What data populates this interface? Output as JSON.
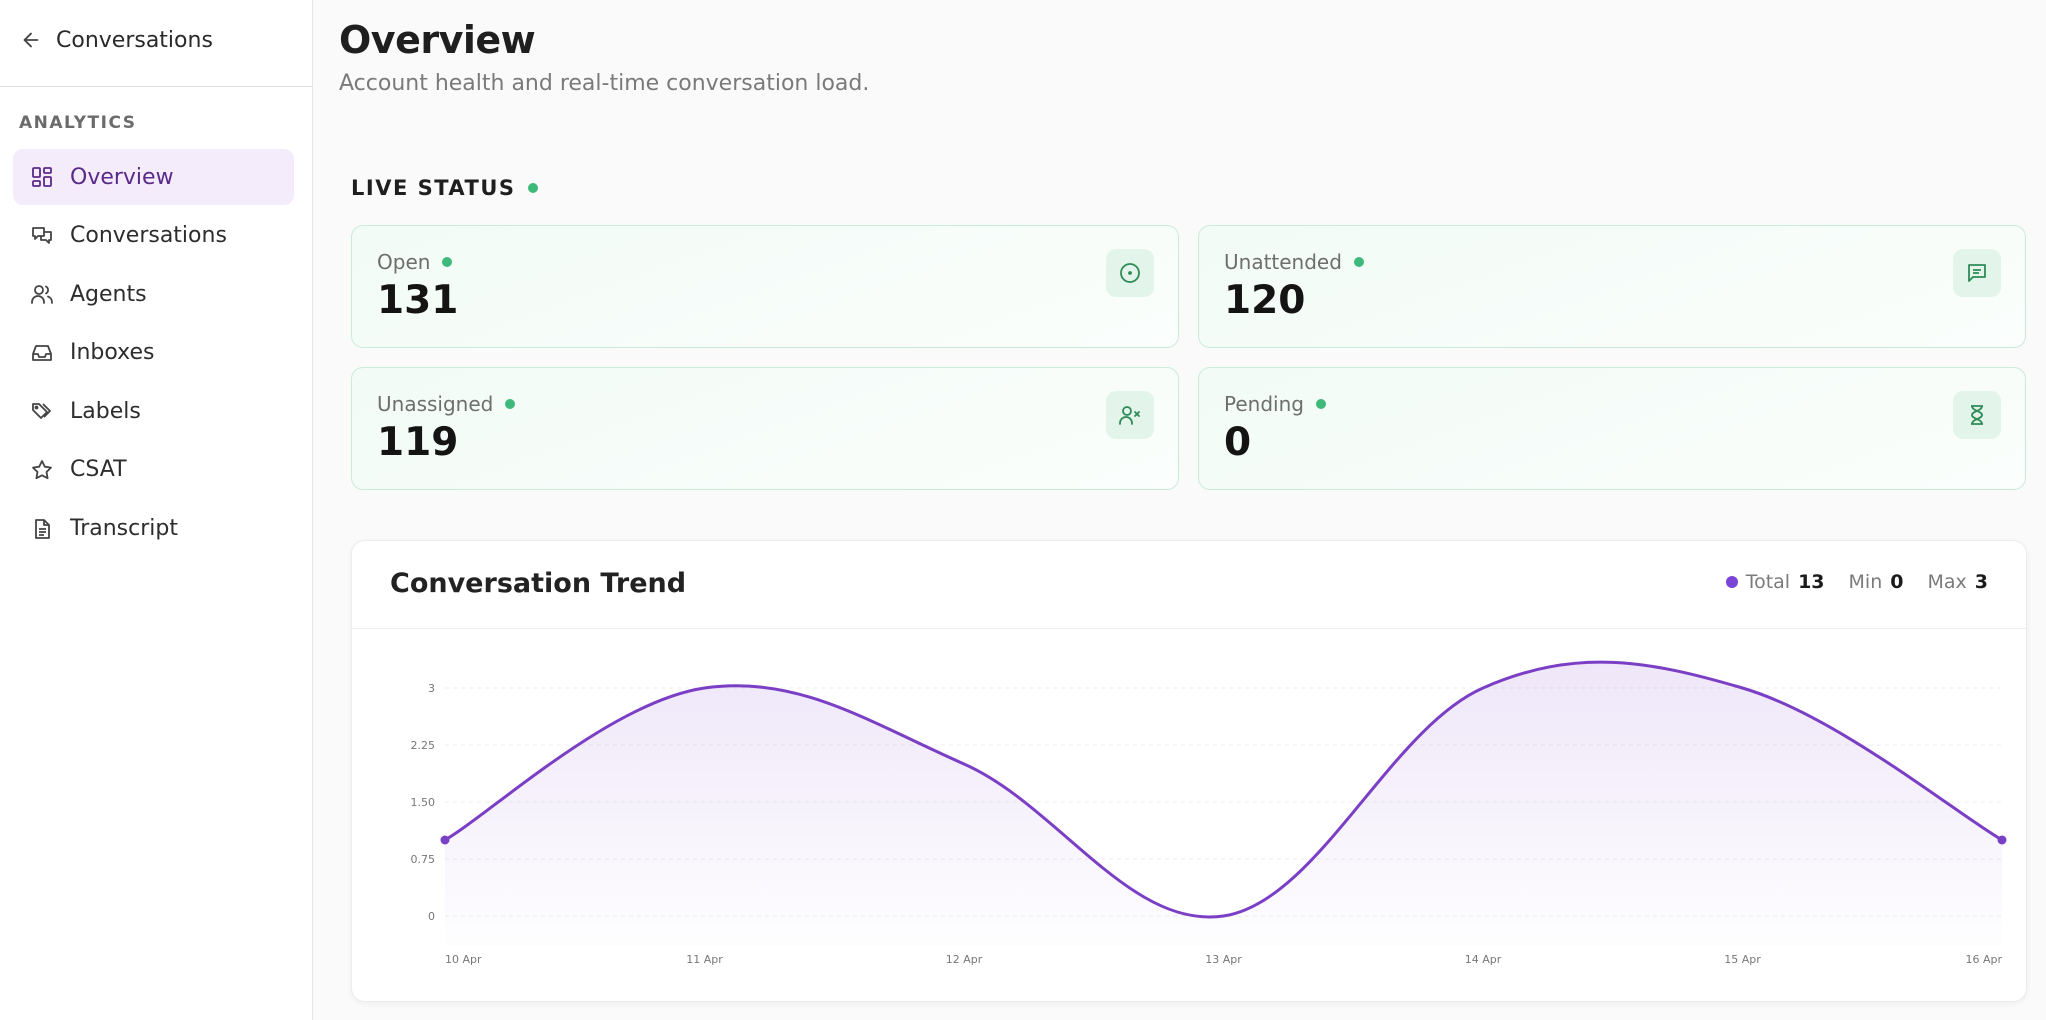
{
  "sidebar": {
    "back_label": "Conversations",
    "section_label": "ANALYTICS",
    "items": [
      {
        "label": "Overview",
        "icon": "dashboard-icon",
        "active": true
      },
      {
        "label": "Conversations",
        "icon": "chat-bubbles-icon",
        "active": false
      },
      {
        "label": "Agents",
        "icon": "users-icon",
        "active": false
      },
      {
        "label": "Inboxes",
        "icon": "inbox-icon",
        "active": false
      },
      {
        "label": "Labels",
        "icon": "tags-icon",
        "active": false
      },
      {
        "label": "CSAT",
        "icon": "star-icon",
        "active": false
      },
      {
        "label": "Transcript",
        "icon": "document-icon",
        "active": false
      }
    ]
  },
  "header": {
    "title": "Overview",
    "subtitle": "Account health and real-time conversation load."
  },
  "live_status": {
    "label": "LIVE STATUS",
    "cards": [
      {
        "label": "Open",
        "value": "131",
        "icon": "circle-dot-icon"
      },
      {
        "label": "Unattended",
        "value": "120",
        "icon": "message-square-icon"
      },
      {
        "label": "Unassigned",
        "value": "119",
        "icon": "user-x-icon"
      },
      {
        "label": "Pending",
        "value": "0",
        "icon": "hourglass-icon"
      }
    ]
  },
  "trend": {
    "title": "Conversation Trend",
    "total_label": "Total",
    "total_value": "13",
    "min_label": "Min",
    "min_value": "0",
    "max_label": "Max",
    "max_value": "3"
  },
  "colors": {
    "accent": "#7a3fc4",
    "status_green": "#3fb97a",
    "active_nav_bg": "#f4ebfb"
  },
  "chart_data": {
    "type": "area",
    "x": [
      "10 Apr",
      "11 Apr",
      "12 Apr",
      "13 Apr",
      "14 Apr",
      "15 Apr",
      "16 Apr"
    ],
    "series": [
      {
        "values": [
          1,
          3,
          2,
          0,
          3,
          3,
          1
        ]
      }
    ],
    "y_ticks": [
      "0",
      "0.75",
      "1.50",
      "2.25",
      "3"
    ],
    "ylim": [
      0,
      3
    ],
    "grid": true,
    "legend": "none"
  }
}
